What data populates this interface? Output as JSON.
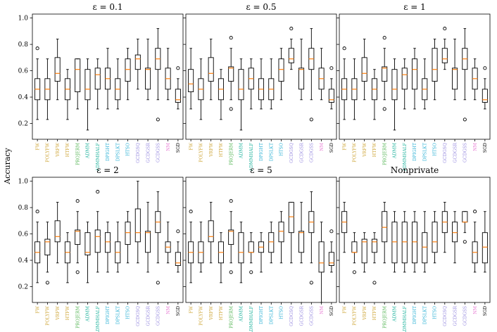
{
  "chart_data": {
    "type": "box",
    "ylabel": "Accuracy",
    "categories": [
      "FW",
      "POLYFW",
      "VRFW",
      "HTFW",
      "PROJERM",
      "ADMM",
      "ADMMHALF",
      "DPIGHT",
      "DPSLKT",
      "HTSO",
      "GCDGSQ",
      "GCDGSR",
      "GCDGSS",
      "NM",
      "SGD"
    ],
    "category_colors": [
      "#cfa73b",
      "#cfa73b",
      "#cfa73b",
      "#cfa73b",
      "#5cb85c",
      "#27b5a0",
      "#27b5a0",
      "#33b3d6",
      "#33b3d6",
      "#33b3d6",
      "#9a8ee0",
      "#9a8ee0",
      "#9a8ee0",
      "#e87fd5",
      "#000000"
    ],
    "median_color": "#ff7f0e",
    "yticks": [
      0.2,
      0.4,
      0.6,
      0.8,
      1.0
    ],
    "ylim": [
      0.08,
      1.03
    ],
    "grid": false,
    "panels": [
      {
        "title": "ε = 0.1",
        "boxes": [
          {
            "whislo": 0.23,
            "q1": 0.38,
            "med": 0.46,
            "q3": 0.54,
            "whishi": 0.69,
            "fliers": [
              0.77
            ]
          },
          {
            "whislo": 0.23,
            "q1": 0.38,
            "med": 0.46,
            "q3": 0.54,
            "whishi": 0.69,
            "fliers": []
          },
          {
            "whislo": 0.38,
            "q1": 0.52,
            "med": 0.58,
            "q3": 0.7,
            "whishi": 0.84,
            "fliers": []
          },
          {
            "whislo": 0.23,
            "q1": 0.38,
            "med": 0.46,
            "q3": 0.54,
            "whishi": 0.61,
            "fliers": []
          },
          {
            "whislo": 0.31,
            "q1": 0.44,
            "med": 0.61,
            "q3": 0.69,
            "whishi": 0.69,
            "fliers": []
          },
          {
            "whislo": 0.15,
            "q1": 0.38,
            "med": 0.46,
            "q3": 0.61,
            "whishi": 0.69,
            "fliers": []
          },
          {
            "whislo": 0.31,
            "q1": 0.46,
            "med": 0.57,
            "q3": 0.62,
            "whishi": 0.69,
            "fliers": []
          },
          {
            "whislo": 0.31,
            "q1": 0.46,
            "med": 0.54,
            "q3": 0.62,
            "whishi": 0.77,
            "fliers": []
          },
          {
            "whislo": 0.31,
            "q1": 0.38,
            "med": 0.46,
            "q3": 0.54,
            "whishi": 0.69,
            "fliers": []
          },
          {
            "whislo": 0.38,
            "q1": 0.52,
            "med": 0.61,
            "q3": 0.69,
            "whishi": 0.77,
            "fliers": []
          },
          {
            "whislo": 0.46,
            "q1": 0.61,
            "med": 0.69,
            "q3": 0.72,
            "whishi": 0.84,
            "fliers": []
          },
          {
            "whislo": 0.38,
            "q1": 0.46,
            "med": 0.61,
            "q3": 0.62,
            "whishi": 0.84,
            "fliers": []
          },
          {
            "whislo": 0.38,
            "q1": 0.61,
            "med": 0.69,
            "q3": 0.77,
            "whishi": 0.92,
            "fliers": [
              0.23
            ]
          },
          {
            "whislo": 0.38,
            "q1": 0.46,
            "med": 0.54,
            "q3": 0.62,
            "whishi": 0.77,
            "fliers": []
          },
          {
            "whislo": 0.31,
            "q1": 0.36,
            "med": 0.38,
            "q3": 0.46,
            "whishi": 0.54,
            "fliers": [
              0.62
            ]
          }
        ]
      },
      {
        "title": "ε = 0.5",
        "boxes": [
          {
            "whislo": 0.31,
            "q1": 0.44,
            "med": 0.5,
            "q3": 0.61,
            "whishi": 0.77,
            "fliers": []
          },
          {
            "whislo": 0.23,
            "q1": 0.38,
            "med": 0.46,
            "q3": 0.54,
            "whishi": 0.69,
            "fliers": []
          },
          {
            "whislo": 0.38,
            "q1": 0.52,
            "med": 0.58,
            "q3": 0.7,
            "whishi": 0.84,
            "fliers": []
          },
          {
            "whislo": 0.23,
            "q1": 0.38,
            "med": 0.46,
            "q3": 0.54,
            "whishi": 0.61,
            "fliers": []
          },
          {
            "whislo": 0.38,
            "q1": 0.52,
            "med": 0.62,
            "q3": 0.63,
            "whishi": 0.77,
            "fliers": [
              0.85,
              0.31
            ]
          },
          {
            "whislo": 0.15,
            "q1": 0.38,
            "med": 0.46,
            "q3": 0.61,
            "whishi": 0.69,
            "fliers": []
          },
          {
            "whislo": 0.31,
            "q1": 0.46,
            "med": 0.54,
            "q3": 0.62,
            "whishi": 0.69,
            "fliers": []
          },
          {
            "whislo": 0.31,
            "q1": 0.38,
            "med": 0.46,
            "q3": 0.54,
            "whishi": 0.69,
            "fliers": []
          },
          {
            "whislo": 0.31,
            "q1": 0.38,
            "med": 0.46,
            "q3": 0.54,
            "whishi": 0.69,
            "fliers": []
          },
          {
            "whislo": 0.38,
            "q1": 0.52,
            "med": 0.61,
            "q3": 0.69,
            "whishi": 0.77,
            "fliers": []
          },
          {
            "whislo": 0.61,
            "q1": 0.66,
            "med": 0.69,
            "q3": 0.77,
            "whishi": 0.84,
            "fliers": [
              0.92
            ]
          },
          {
            "whislo": 0.38,
            "q1": 0.46,
            "med": 0.61,
            "q3": 0.62,
            "whishi": 0.84,
            "fliers": []
          },
          {
            "whislo": 0.38,
            "q1": 0.61,
            "med": 0.69,
            "q3": 0.77,
            "whishi": 0.92,
            "fliers": [
              0.23
            ]
          },
          {
            "whislo": 0.38,
            "q1": 0.46,
            "med": 0.54,
            "q3": 0.62,
            "whishi": 0.77,
            "fliers": []
          },
          {
            "whislo": 0.31,
            "q1": 0.36,
            "med": 0.38,
            "q3": 0.46,
            "whishi": 0.54,
            "fliers": [
              0.62
            ]
          }
        ]
      },
      {
        "title": "ε = 1",
        "boxes": [
          {
            "whislo": 0.23,
            "q1": 0.38,
            "med": 0.46,
            "q3": 0.54,
            "whishi": 0.69,
            "fliers": [
              0.77
            ]
          },
          {
            "whislo": 0.23,
            "q1": 0.38,
            "med": 0.46,
            "q3": 0.54,
            "whishi": 0.69,
            "fliers": []
          },
          {
            "whislo": 0.38,
            "q1": 0.52,
            "med": 0.58,
            "q3": 0.7,
            "whishi": 0.84,
            "fliers": []
          },
          {
            "whislo": 0.23,
            "q1": 0.38,
            "med": 0.46,
            "q3": 0.54,
            "whishi": 0.61,
            "fliers": []
          },
          {
            "whislo": 0.38,
            "q1": 0.52,
            "med": 0.62,
            "q3": 0.63,
            "whishi": 0.77,
            "fliers": [
              0.85,
              0.31
            ]
          },
          {
            "whislo": 0.15,
            "q1": 0.38,
            "med": 0.46,
            "q3": 0.61,
            "whishi": 0.69,
            "fliers": []
          },
          {
            "whislo": 0.31,
            "q1": 0.46,
            "med": 0.57,
            "q3": 0.62,
            "whishi": 0.69,
            "fliers": []
          },
          {
            "whislo": 0.31,
            "q1": 0.46,
            "med": 0.61,
            "q3": 0.69,
            "whishi": 0.77,
            "fliers": []
          },
          {
            "whislo": 0.31,
            "q1": 0.38,
            "med": 0.46,
            "q3": 0.54,
            "whishi": 0.69,
            "fliers": []
          },
          {
            "whislo": 0.38,
            "q1": 0.52,
            "med": 0.61,
            "q3": 0.77,
            "whishi": 0.84,
            "fliers": []
          },
          {
            "whislo": 0.61,
            "q1": 0.66,
            "med": 0.69,
            "q3": 0.77,
            "whishi": 0.84,
            "fliers": [
              0.92
            ]
          },
          {
            "whislo": 0.38,
            "q1": 0.46,
            "med": 0.61,
            "q3": 0.62,
            "whishi": 0.84,
            "fliers": []
          },
          {
            "whislo": 0.38,
            "q1": 0.61,
            "med": 0.69,
            "q3": 0.77,
            "whishi": 0.92,
            "fliers": [
              0.23
            ]
          },
          {
            "whislo": 0.38,
            "q1": 0.46,
            "med": 0.54,
            "q3": 0.62,
            "whishi": 0.69,
            "fliers": []
          },
          {
            "whislo": 0.31,
            "q1": 0.36,
            "med": 0.38,
            "q3": 0.46,
            "whishi": 0.54,
            "fliers": [
              0.62
            ]
          }
        ]
      },
      {
        "title": "ε = 2",
        "boxes": [
          {
            "whislo": 0.23,
            "q1": 0.38,
            "med": 0.46,
            "q3": 0.54,
            "whishi": 0.69,
            "fliers": [
              0.77
            ]
          },
          {
            "whislo": 0.31,
            "q1": 0.44,
            "med": 0.54,
            "q3": 0.56,
            "whishi": 0.69,
            "fliers": [
              0.23
            ]
          },
          {
            "whislo": 0.38,
            "q1": 0.54,
            "med": 0.58,
            "q3": 0.7,
            "whishi": 0.84,
            "fliers": []
          },
          {
            "whislo": 0.23,
            "q1": 0.38,
            "med": 0.46,
            "q3": 0.54,
            "whishi": 0.61,
            "fliers": []
          },
          {
            "whislo": 0.38,
            "q1": 0.52,
            "med": 0.62,
            "q3": 0.63,
            "whishi": 0.77,
            "fliers": [
              0.85,
              0.31
            ]
          },
          {
            "whislo": 0.23,
            "q1": 0.44,
            "med": 0.46,
            "q3": 0.61,
            "whishi": 0.69,
            "fliers": []
          },
          {
            "whislo": 0.31,
            "q1": 0.46,
            "med": 0.58,
            "q3": 0.63,
            "whishi": 0.77,
            "fliers": [
              0.92
            ]
          },
          {
            "whislo": 0.31,
            "q1": 0.46,
            "med": 0.54,
            "q3": 0.61,
            "whishi": 0.69,
            "fliers": []
          },
          {
            "whislo": 0.31,
            "q1": 0.38,
            "med": 0.46,
            "q3": 0.54,
            "whishi": 0.69,
            "fliers": []
          },
          {
            "whislo": 0.38,
            "q1": 0.52,
            "med": 0.61,
            "q3": 0.69,
            "whishi": 0.77,
            "fliers": []
          },
          {
            "whislo": 0.38,
            "q1": 0.54,
            "med": 0.61,
            "q3": 0.79,
            "whishi": 1.0,
            "fliers": []
          },
          {
            "whislo": 0.31,
            "q1": 0.46,
            "med": 0.61,
            "q3": 0.62,
            "whishi": 0.84,
            "fliers": []
          },
          {
            "whislo": 0.38,
            "q1": 0.61,
            "med": 0.69,
            "q3": 0.77,
            "whishi": 0.92,
            "fliers": [
              0.23
            ]
          },
          {
            "whislo": 0.38,
            "q1": 0.46,
            "med": 0.5,
            "q3": 0.54,
            "whishi": 0.69,
            "fliers": []
          },
          {
            "whislo": 0.31,
            "q1": 0.36,
            "med": 0.38,
            "q3": 0.46,
            "whishi": 0.54,
            "fliers": [
              0.62
            ]
          }
        ]
      },
      {
        "title": "ε = 5",
        "boxes": [
          {
            "whislo": 0.23,
            "q1": 0.38,
            "med": 0.46,
            "q3": 0.54,
            "whishi": 0.69,
            "fliers": [
              0.77
            ]
          },
          {
            "whislo": 0.31,
            "q1": 0.38,
            "med": 0.46,
            "q3": 0.54,
            "whishi": 0.69,
            "fliers": []
          },
          {
            "whislo": 0.38,
            "q1": 0.54,
            "med": 0.58,
            "q3": 0.7,
            "whishi": 0.84,
            "fliers": []
          },
          {
            "whislo": 0.23,
            "q1": 0.38,
            "med": 0.46,
            "q3": 0.54,
            "whishi": 0.61,
            "fliers": []
          },
          {
            "whislo": 0.38,
            "q1": 0.52,
            "med": 0.62,
            "q3": 0.63,
            "whishi": 0.77,
            "fliers": [
              0.85,
              0.31
            ]
          },
          {
            "whislo": 0.23,
            "q1": 0.38,
            "med": 0.46,
            "q3": 0.61,
            "whishi": 0.69,
            "fliers": []
          },
          {
            "whislo": 0.38,
            "q1": 0.46,
            "med": 0.46,
            "q3": 0.54,
            "whishi": 0.61,
            "fliers": [
              0.31
            ]
          },
          {
            "whislo": 0.31,
            "q1": 0.46,
            "med": 0.5,
            "q3": 0.54,
            "whishi": 0.61,
            "fliers": []
          },
          {
            "whislo": 0.38,
            "q1": 0.46,
            "med": 0.54,
            "q3": 0.61,
            "whishi": 0.69,
            "fliers": []
          },
          {
            "whislo": 0.38,
            "q1": 0.54,
            "med": 0.62,
            "q3": 0.69,
            "whishi": 0.77,
            "fliers": []
          },
          {
            "whislo": 0.38,
            "q1": 0.61,
            "med": 0.73,
            "q3": 0.84,
            "whishi": 0.84,
            "fliers": []
          },
          {
            "whislo": 0.38,
            "q1": 0.46,
            "med": 0.61,
            "q3": 0.62,
            "whishi": 0.84,
            "fliers": []
          },
          {
            "whislo": 0.38,
            "q1": 0.61,
            "med": 0.69,
            "q3": 0.77,
            "whishi": 0.92,
            "fliers": [
              0.23
            ]
          },
          {
            "whislo": 0.08,
            "q1": 0.31,
            "med": 0.38,
            "q3": 0.54,
            "whishi": 0.69,
            "fliers": []
          },
          {
            "whislo": 0.31,
            "q1": 0.36,
            "med": 0.38,
            "q3": 0.46,
            "whishi": 0.54,
            "fliers": [
              0.62
            ]
          }
        ]
      },
      {
        "title": "Nonprivate",
        "boxes": [
          {
            "whislo": 0.46,
            "q1": 0.61,
            "med": 0.69,
            "q3": 0.77,
            "whishi": 0.84,
            "fliers": []
          },
          {
            "whislo": 0.38,
            "q1": 0.46,
            "med": 0.46,
            "q3": 0.54,
            "whishi": 0.61,
            "fliers": [
              0.31
            ]
          },
          {
            "whislo": 0.31,
            "q1": 0.38,
            "med": 0.54,
            "q3": 0.56,
            "whishi": 0.61,
            "fliers": []
          },
          {
            "whislo": 0.38,
            "q1": 0.46,
            "med": 0.54,
            "q3": 0.56,
            "whishi": 0.61,
            "fliers": [
              0.23
            ]
          },
          {
            "whislo": 0.38,
            "q1": 0.54,
            "med": 0.65,
            "q3": 0.77,
            "whishi": 0.84,
            "fliers": []
          },
          {
            "whislo": 0.31,
            "q1": 0.38,
            "med": 0.54,
            "q3": 0.69,
            "whishi": 0.77,
            "fliers": []
          },
          {
            "whislo": 0.31,
            "q1": 0.38,
            "med": 0.54,
            "q3": 0.69,
            "whishi": 0.77,
            "fliers": []
          },
          {
            "whislo": 0.31,
            "q1": 0.38,
            "med": 0.54,
            "q3": 0.69,
            "whishi": 0.77,
            "fliers": []
          },
          {
            "whislo": 0.31,
            "q1": 0.38,
            "med": 0.5,
            "q3": 0.61,
            "whishi": 0.77,
            "fliers": []
          },
          {
            "whislo": 0.38,
            "q1": 0.46,
            "med": 0.54,
            "q3": 0.69,
            "whishi": 0.77,
            "fliers": []
          },
          {
            "whislo": 0.46,
            "q1": 0.61,
            "med": 0.69,
            "q3": 0.77,
            "whishi": 0.84,
            "fliers": []
          },
          {
            "whislo": 0.38,
            "q1": 0.54,
            "med": 0.61,
            "q3": 0.69,
            "whishi": 0.77,
            "fliers": []
          },
          {
            "whislo": 0.61,
            "q1": 0.69,
            "med": 0.69,
            "q3": 0.77,
            "whishi": 0.77,
            "fliers": [
              0.54
            ]
          },
          {
            "whislo": 0.31,
            "q1": 0.38,
            "med": 0.46,
            "q3": 0.54,
            "whishi": 0.69,
            "fliers": [
              0.77
            ]
          },
          {
            "whislo": 0.31,
            "q1": 0.38,
            "med": 0.5,
            "q3": 0.61,
            "whishi": 0.77,
            "fliers": []
          }
        ]
      }
    ]
  }
}
